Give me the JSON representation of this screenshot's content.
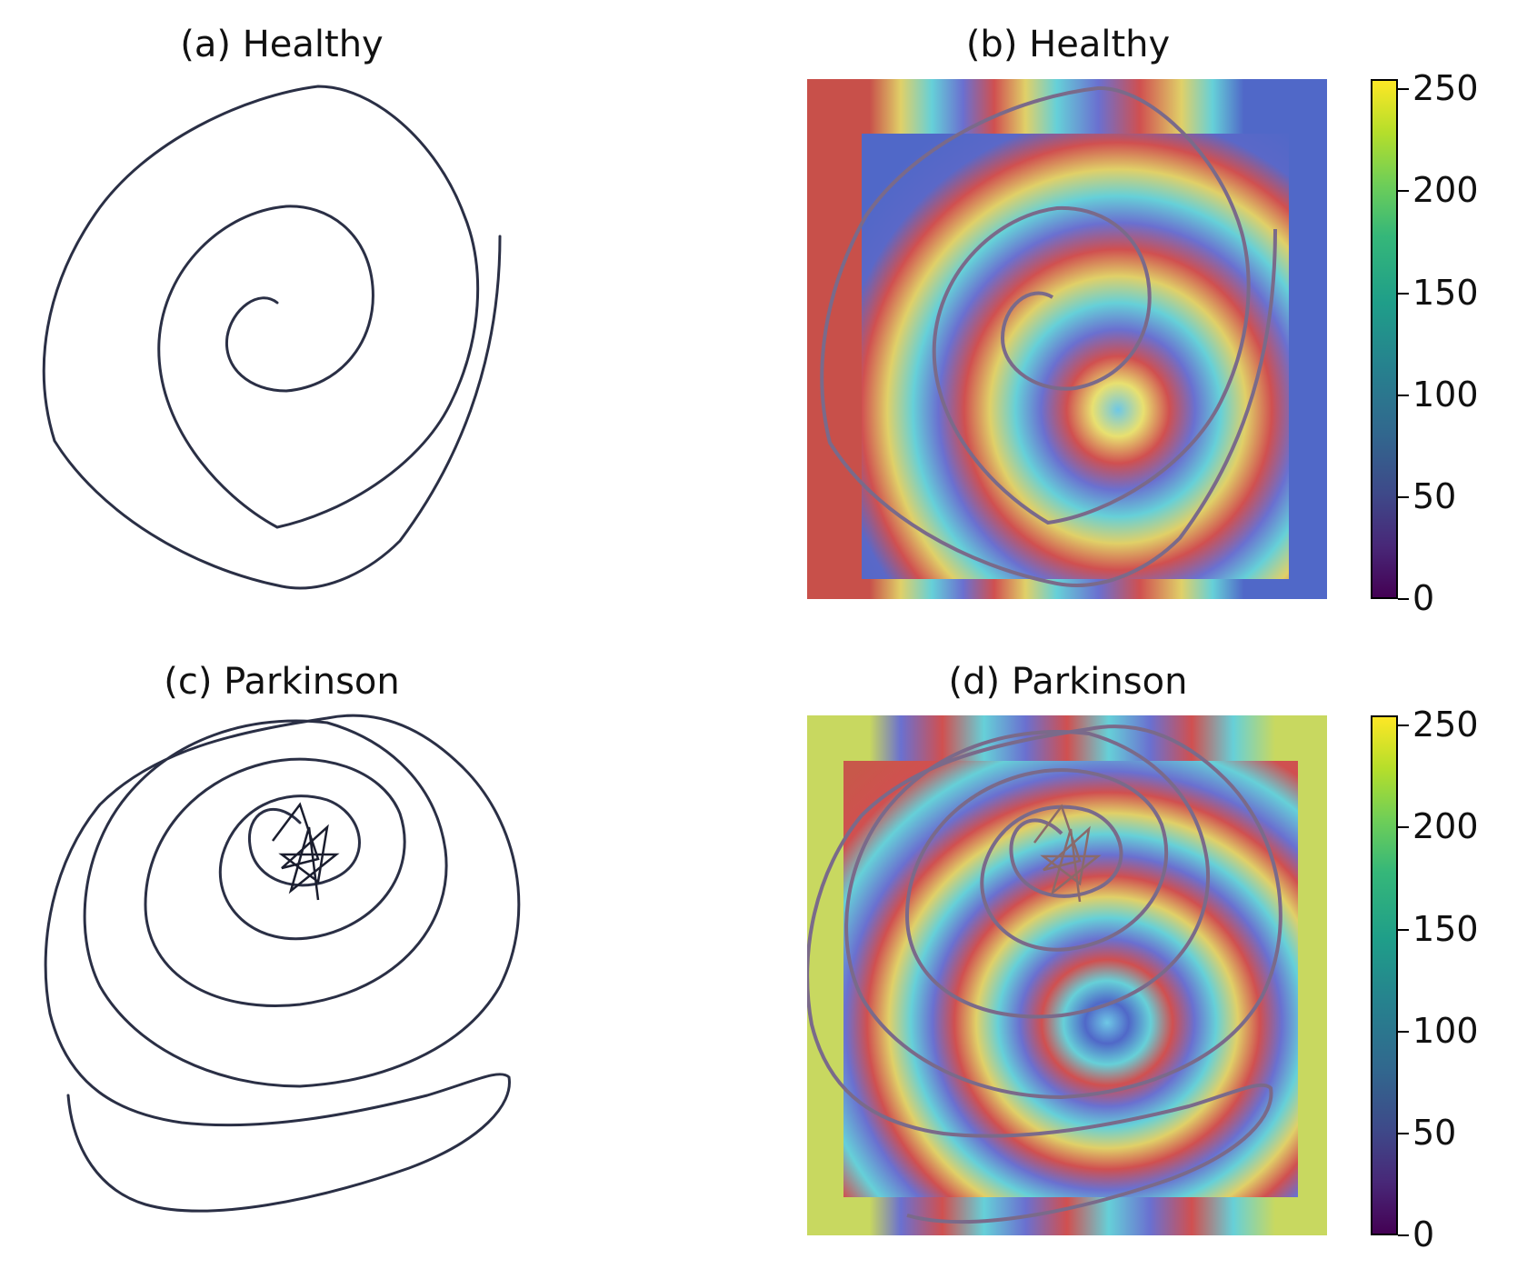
{
  "panels": {
    "a": {
      "title": "(a) Healthy"
    },
    "b": {
      "title": "(b) Healthy"
    },
    "c": {
      "title": "(c) Parkinson"
    },
    "d": {
      "title": "(d) Parkinson"
    }
  },
  "colorbar": {
    "colormap": "viridis",
    "range": [
      0,
      255
    ],
    "ticks": [
      "0",
      "50",
      "100",
      "150",
      "200",
      "250"
    ]
  },
  "colors": {
    "ink": "#2a2f45",
    "overlay_red": "#c8504a",
    "overlay_blue": "#5068c8"
  }
}
